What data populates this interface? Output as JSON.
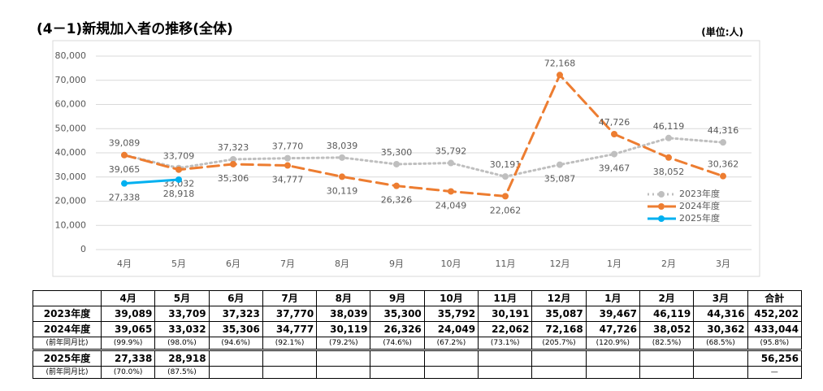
{
  "chart_data": {
    "type": "line",
    "title": "(4－1)新規加入者の推移(全体)",
    "unit_label": "(単位:人)",
    "categories": [
      "4月",
      "5月",
      "6月",
      "7月",
      "8月",
      "9月",
      "10月",
      "11月",
      "12月",
      "1月",
      "2月",
      "3月"
    ],
    "ylim": [
      0,
      80000
    ],
    "yticks": [
      0,
      {
        "value": 10000,
        "label": "10,000"
      },
      {
        "value": 20000,
        "label": "20,000"
      },
      {
        "value": 30000,
        "label": "30,000"
      },
      {
        "value": 40000,
        "label": "40,000"
      },
      {
        "value": 50000,
        "label": "50,000"
      },
      {
        "value": 60000,
        "label": "60,000"
      },
      {
        "value": 70000,
        "label": "70,000"
      },
      {
        "value": 80000,
        "label": "80,000"
      }
    ],
    "grid": true,
    "legend": "lower right",
    "series": [
      {
        "name": "2023年度",
        "color": "#bfbfbf",
        "style": "dotted",
        "values": [
          39089,
          33709,
          37323,
          37770,
          38039,
          35300,
          35792,
          30191,
          35087,
          39467,
          46119,
          44316
        ],
        "value_labels": [
          "39,089",
          "33,709",
          "37,323",
          "37,770",
          "38,039",
          "35,300",
          "35,792",
          "30,191",
          "35,087",
          "39,467",
          "46,119",
          "44,316"
        ]
      },
      {
        "name": "2024年度",
        "color": "#ed7d31",
        "style": "dashed",
        "values": [
          39065,
          33032,
          35306,
          34777,
          30119,
          26326,
          24049,
          22062,
          72168,
          47726,
          38052,
          30362
        ],
        "value_labels": [
          "39,065",
          "33,032",
          "35,306",
          "34,777",
          "30,119",
          "26,326",
          "24,049",
          "22,062",
          "72,168",
          "47,726",
          "38,052",
          "30,362"
        ]
      },
      {
        "name": "2025年度",
        "color": "#00b0f0",
        "style": "solid",
        "values": [
          27338,
          28918,
          null,
          null,
          null,
          null,
          null,
          null,
          null,
          null,
          null,
          null
        ],
        "value_labels": [
          "27,338",
          "28,918",
          null,
          null,
          null,
          null,
          null,
          null,
          null,
          null,
          null,
          null
        ]
      }
    ]
  },
  "table": {
    "header": [
      "4月",
      "5月",
      "6月",
      "7月",
      "8月",
      "9月",
      "10月",
      "11月",
      "12月",
      "1月",
      "2月",
      "3月",
      "合計"
    ],
    "rows": [
      {
        "label": "2023年度",
        "cells": [
          "39,089",
          "33,709",
          "37,323",
          "37,770",
          "38,039",
          "35,300",
          "35,792",
          "30,191",
          "35,087",
          "39,467",
          "46,119",
          "44,316"
        ],
        "total": "452,202"
      },
      {
        "label": "2024年度",
        "cells": [
          "39,065",
          "33,032",
          "35,306",
          "34,777",
          "30,119",
          "26,326",
          "24,049",
          "22,062",
          "72,168",
          "47,726",
          "38,052",
          "30,362"
        ],
        "total": "433,044"
      },
      {
        "label": "(前年同月比)",
        "cells": [
          "(99.9%)",
          "(98.0%)",
          "(94.6%)",
          "(92.1%)",
          "(79.2%)",
          "(74.6%)",
          "(67.2%)",
          "(73.1%)",
          "(205.7%)",
          "(120.9%)",
          "(82.5%)",
          "(68.5%)"
        ],
        "total": "(95.8%)"
      },
      {
        "label": "2025年度",
        "cells": [
          "27,338",
          "28,918"
        ],
        "total": "56,256"
      },
      {
        "label": "(前年同月比)",
        "cells": [
          "(70.0%)",
          "(87.5%)"
        ],
        "total": "—"
      }
    ]
  }
}
